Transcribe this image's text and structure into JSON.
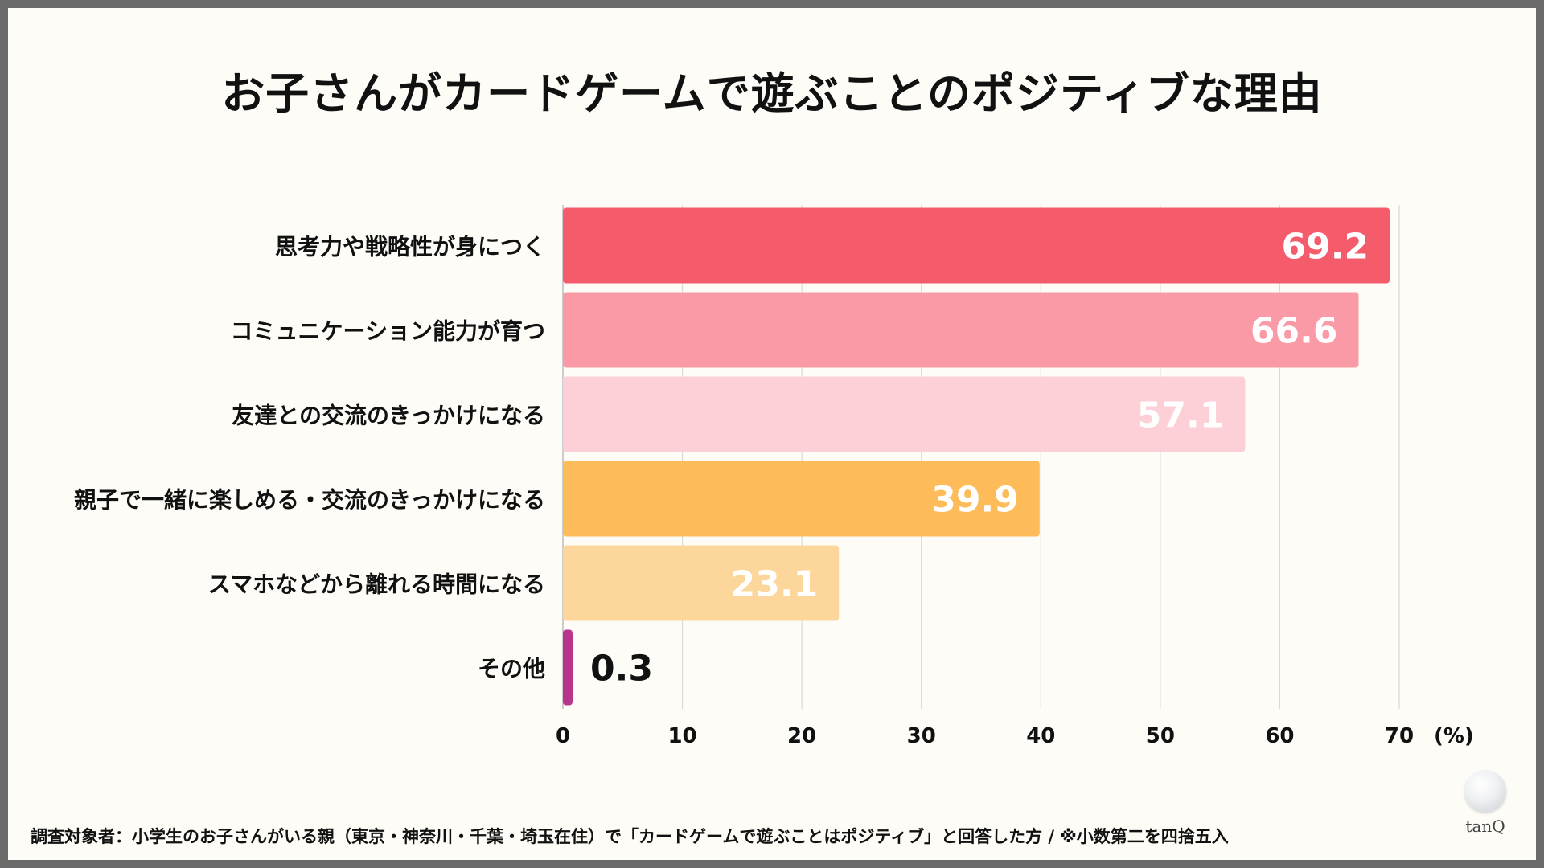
{
  "title": "お子さんがカードゲームで遊ぶことのポジティブな理由",
  "footnote": "調査対象者：小学生のお子さんがいる親（東京・神奈川・千葉・埼玉在住）で「カードゲームで遊ぶことはポジティブ」と回答した方 / ※小数第二を四捨五入",
  "logo_text": "tanQ",
  "chart_data": {
    "type": "bar",
    "orientation": "horizontal",
    "title": "お子さんがカードゲームで遊ぶことのポジティブな理由",
    "categories": [
      "思考力や戦略性が身につく",
      "コミュニケーション能力が育つ",
      "友達との交流のきっかけになる",
      "親子で一緒に楽しめる・交流のきっかけになる",
      "スマホなどから離れる時間になる",
      "その他"
    ],
    "values": [
      69.2,
      66.6,
      57.1,
      39.9,
      23.1,
      0.3
    ],
    "value_labels": [
      "69.2",
      "66.6",
      "57.1",
      "39.9",
      "23.1",
      "0.3"
    ],
    "colors": [
      "#f55c6b",
      "#fa9aa6",
      "#fdcfd6",
      "#fdbc59",
      "#fdd69b",
      "#b8358b"
    ],
    "xlim": [
      0,
      70
    ],
    "xticks": [
      "0",
      "10",
      "20",
      "30",
      "40",
      "50",
      "60",
      "70"
    ],
    "unit_label": "(%)",
    "xlabel": "",
    "ylabel": "",
    "grid": true
  }
}
